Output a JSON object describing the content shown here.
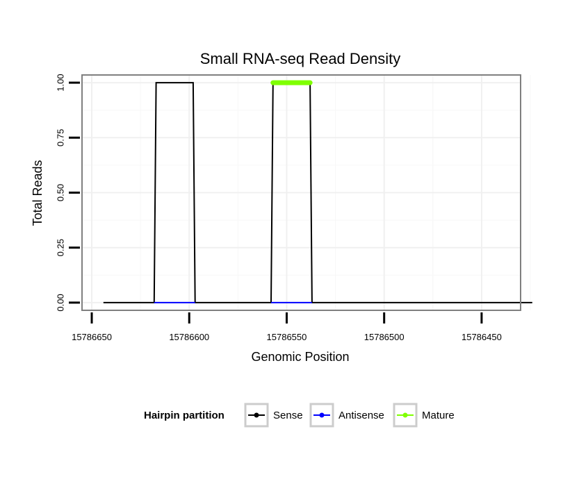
{
  "chart_data": {
    "type": "line",
    "title": "Small RNA-seq Read Density",
    "xlabel": "Genomic Position",
    "ylabel": "Total Reads",
    "x_reversed": true,
    "xlim": [
      15786655,
      15786430
    ],
    "ylim": [
      -0.035,
      1.035
    ],
    "x_ticks": [
      15786650,
      15786600,
      15786550,
      15786500,
      15786450
    ],
    "x_tick_labels": [
      "15786650",
      "15786600",
      "15786550",
      "15786500",
      "15786450"
    ],
    "y_ticks": [
      0,
      0.25,
      0.5,
      0.75,
      1
    ],
    "y_tick_labels": [
      "0.00",
      "0.25",
      "0.50",
      "0.75",
      "1.00"
    ],
    "grid": true,
    "legend_position": "bottom",
    "legend_title": "Hairpin partition",
    "series": [
      {
        "name": "Sense",
        "color": "#000000",
        "x": [
          15786644,
          15786618,
          15786617,
          15786598,
          15786597,
          15786558,
          15786557,
          15786538,
          15786537,
          15786424
        ],
        "y": [
          0,
          0,
          1,
          1,
          0,
          0,
          1,
          1,
          0,
          0
        ]
      },
      {
        "name": "Antisense",
        "color": "#0000ff",
        "x": [
          15786618,
          15786597
        ],
        "y": [
          0,
          0
        ],
        "extra_segments": [
          {
            "x": [
              15786558,
              15786537
            ],
            "y": [
              0,
              0
            ]
          }
        ]
      },
      {
        "name": "Mature",
        "color": "#7fff00",
        "x": [
          15786557,
          15786538
        ],
        "y": [
          1,
          1
        ]
      }
    ]
  }
}
